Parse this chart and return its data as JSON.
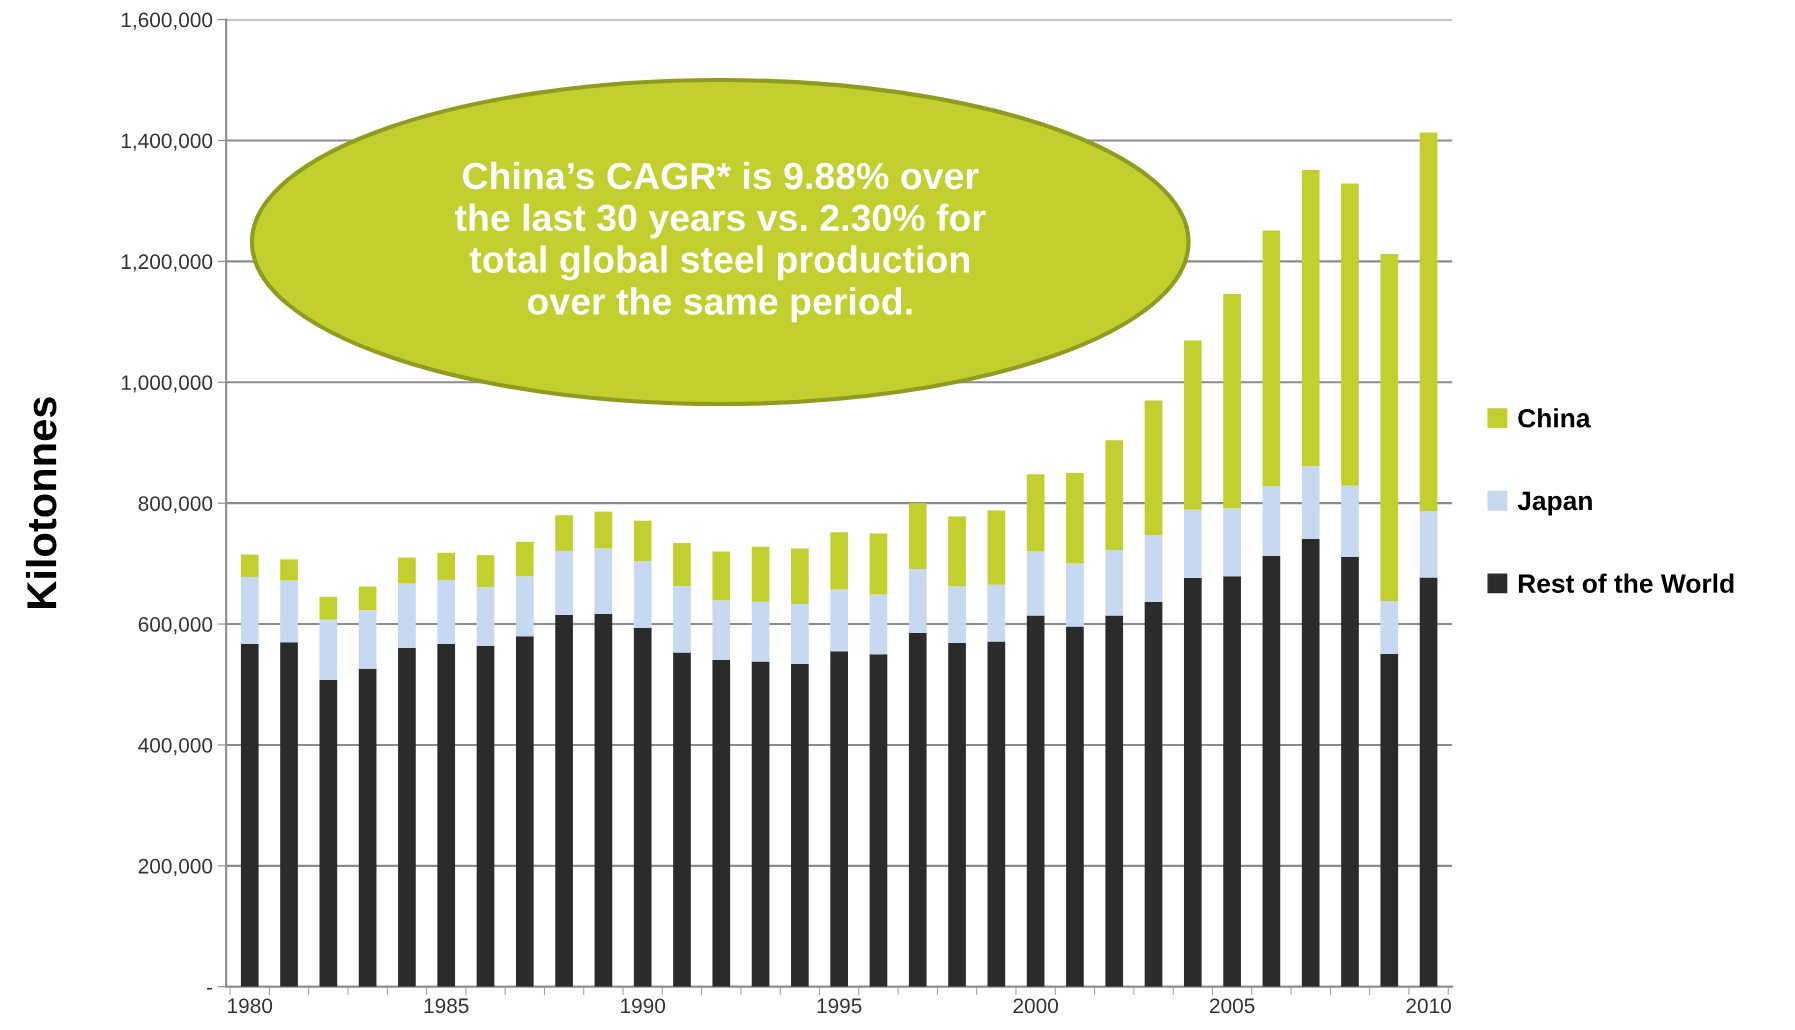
{
  "chart_data": {
    "type": "bar",
    "stacked": true,
    "ylabel": "Kilotonnes",
    "categories": [
      "1980",
      null,
      null,
      null,
      null,
      "1985",
      null,
      null,
      null,
      null,
      "1990",
      null,
      null,
      null,
      null,
      "1995",
      null,
      null,
      null,
      null,
      "2000",
      null,
      null,
      null,
      null,
      "2005",
      null,
      null,
      null,
      null,
      "2010"
    ],
    "series": [
      {
        "name": "Rest of the World",
        "color": "#2b2b2b",
        "values": [
          567000,
          570000,
          508000,
          526000,
          561000,
          567000,
          564000,
          580000,
          615000,
          617000,
          594000,
          553000,
          541000,
          538000,
          534000,
          555000,
          550000,
          585000,
          569000,
          571000,
          614000,
          596000,
          614000,
          637000,
          676000,
          679000,
          713000,
          741000,
          711000,
          551000,
          677000
        ]
      },
      {
        "name": "Japan",
        "color": "#c6d9f0",
        "values": [
          111000,
          102000,
          99000,
          97000,
          106000,
          106000,
          97000,
          99000,
          106000,
          108000,
          110000,
          110000,
          98000,
          99000,
          99000,
          102000,
          99000,
          106000,
          93000,
          94000,
          106000,
          104000,
          108000,
          110000,
          113000,
          112000,
          115000,
          120000,
          118000,
          87000,
          110000
        ]
      },
      {
        "name": "China",
        "color": "#c3cf2e",
        "values": [
          37000,
          35000,
          38000,
          39000,
          43000,
          45000,
          53000,
          57000,
          59000,
          61000,
          67000,
          71000,
          81000,
          91000,
          92000,
          95000,
          101000,
          109000,
          116000,
          123000,
          128000,
          150000,
          182000,
          223000,
          280000,
          355000,
          423000,
          490000,
          500000,
          574000,
          626000
        ]
      }
    ],
    "ylim": [
      0,
      1600000
    ],
    "yticks": [
      {
        "value": 0,
        "label": "-"
      },
      {
        "value": 200000,
        "label": "200,000"
      },
      {
        "value": 400000,
        "label": "400,000"
      },
      {
        "value": 600000,
        "label": "600,000"
      },
      {
        "value": 800000,
        "label": "800,000"
      },
      {
        "value": 1000000,
        "label": "1,000,000"
      },
      {
        "value": 1200000,
        "label": "1,200,000"
      },
      {
        "value": 1400000,
        "label": "1,400,000"
      },
      {
        "value": 1600000,
        "label": "1,600,000"
      }
    ],
    "grid": "y",
    "legend": "right",
    "annotations": [
      "China’s CAGR* is 9.88% over\nthe last 30 years vs. 2.30% for\ntotal global steel production\nover the same period."
    ]
  }
}
